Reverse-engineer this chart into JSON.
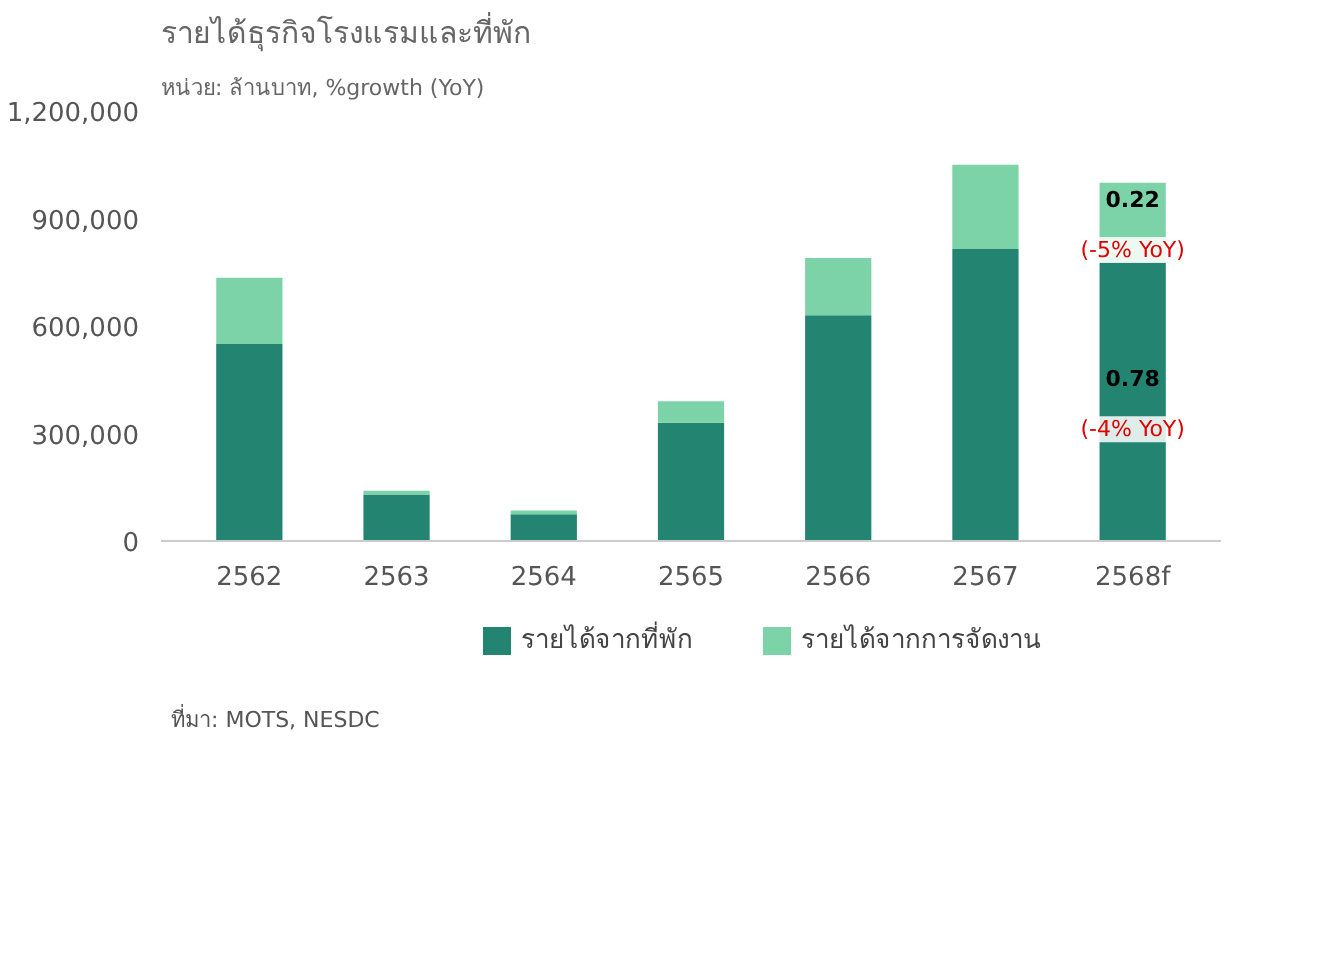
{
  "chart_data": {
    "type": "bar",
    "stacked": true,
    "title": "รายได้ธุรกิจโรงแรมและที่พัก",
    "subtitle": "หน่วย: ล้านบาท, %growth (YoY)",
    "categories": [
      "2562",
      "2563",
      "2564",
      "2565",
      "2566",
      "2567",
      "2568f"
    ],
    "series": [
      {
        "name": "รายได้จากที่พัก",
        "color": "#228471",
        "values": [
          550000,
          130000,
          75000,
          330000,
          630000,
          815000,
          780000
        ]
      },
      {
        "name": "รายได้จากการจัดงาน",
        "color": "#7dd3a8",
        "values": [
          185000,
          10000,
          10000,
          60000,
          160000,
          235000,
          220000
        ]
      }
    ],
    "ylim": [
      0,
      1200000
    ],
    "yticks": [
      {
        "value": 0,
        "label": "0"
      },
      {
        "value": 300000,
        "label": "300,000"
      },
      {
        "value": 600000,
        "label": "600,000"
      },
      {
        "value": 900000,
        "label": "900,000"
      },
      {
        "value": 1200000,
        "label": "1,200,000"
      }
    ],
    "legend": "bottom",
    "annotations": [
      "0.22",
      "(-5% YoY)",
      "0.78",
      "(-4% YoY)",
      "ที่มา: MOTS, NESDC"
    ]
  }
}
